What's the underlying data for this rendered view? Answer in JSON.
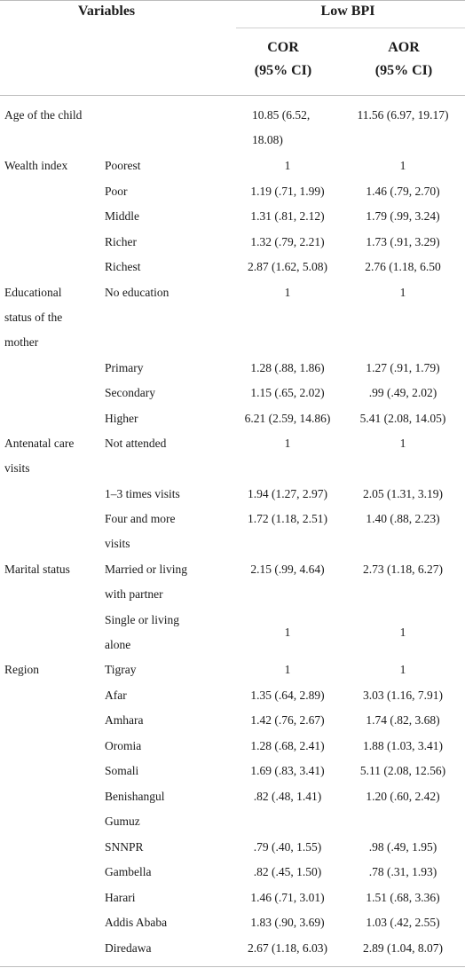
{
  "header": {
    "variables": "Variables",
    "group": "Low BPI",
    "cor_line1": "COR",
    "cor_line2": "(95% CI)",
    "aor_line1": "AOR",
    "aor_line2": "(95% CI)"
  },
  "rows": {
    "age": {
      "var": "Age of the child",
      "cor1": "10.85 (6.52,",
      "cor2": "18.08)",
      "aor": "11.56 (6.97, 19.17)"
    },
    "wealth": {
      "var": "Wealth index",
      "items": [
        {
          "cat": "Poorest",
          "cor": "1",
          "aor": "1"
        },
        {
          "cat": "Poor",
          "cor": "1.19 (.71, 1.99)",
          "aor": "1.46 (.79, 2.70)"
        },
        {
          "cat": "Middle",
          "cor": "1.31 (.81, 2.12)",
          "aor": "1.79 (.99, 3.24)"
        },
        {
          "cat": "Richer",
          "cor": "1.32 (.79, 2.21)",
          "aor": "1.73 (.91, 3.29)"
        },
        {
          "cat": "Richest",
          "cor": "2.87 (1.62, 5.08)",
          "aor": "2.76 (1.18, 6.50"
        }
      ]
    },
    "education": {
      "var1": "Educational",
      "var2": "status of the",
      "var3": "mother",
      "items": [
        {
          "cat": "No education",
          "cor": "1",
          "aor": "1"
        },
        {
          "cat": "Primary",
          "cor": "1.28 (.88, 1.86)",
          "aor": "1.27 (.91, 1.79)"
        },
        {
          "cat": "Secondary",
          "cor": "1.15 (.65, 2.02)",
          "aor": ".99 (.49, 2.02)"
        },
        {
          "cat": "Higher",
          "cor": "6.21 (2.59, 14.86)",
          "aor": "5.41 (2.08, 14.05)"
        }
      ]
    },
    "anc": {
      "var1": "Antenatal care",
      "var2": "visits",
      "items": [
        {
          "cat": "Not attended",
          "cor": "1",
          "aor": "1"
        },
        {
          "cat": "1–3 times visits",
          "cor": "1.94 (1.27, 2.97)",
          "aor": "2.05 (1.31, 3.19)"
        },
        {
          "cat1": "Four and more",
          "cat2": "visits",
          "cor": "1.72 (1.18, 2.51)",
          "aor": "1.40 (.88, 2.23)"
        }
      ]
    },
    "marital": {
      "var": "Marital status",
      "items": [
        {
          "cat1": "Married or living",
          "cat2": "with partner",
          "cor": "2.15 (.99, 4.64)",
          "aor": "2.73 (1.18, 6.27)"
        },
        {
          "cat1": "Single or living",
          "cat2": "alone",
          "cor": "1",
          "aor": "1"
        }
      ]
    },
    "region": {
      "var": "Region",
      "items": [
        {
          "cat": "Tigray",
          "cor": "1",
          "aor": "1"
        },
        {
          "cat": "Afar",
          "cor": "1.35 (.64, 2.89)",
          "aor": "3.03 (1.16, 7.91)"
        },
        {
          "cat": "Amhara",
          "cor": "1.42 (.76, 2.67)",
          "aor": "1.74 (.82, 3.68)"
        },
        {
          "cat": "Oromia",
          "cor": "1.28 (.68, 2.41)",
          "aor": "1.88 (1.03, 3.41)"
        },
        {
          "cat": "Somali",
          "cor": "1.69 (.83, 3.41)",
          "aor": "5.11 (2.08, 12.56)"
        },
        {
          "cat1": "Benishangul",
          "cat2": "Gumuz",
          "cor": ".82 (.48, 1.41)",
          "aor": "1.20 (.60, 2.42)"
        },
        {
          "cat": "SNNPR",
          "cor": ".79 (.40, 1.55)",
          "aor": ".98 (.49, 1.95)"
        },
        {
          "cat": "Gambella",
          "cor": ".82 (.45, 1.50)",
          "aor": ".78 (.31, 1.93)"
        },
        {
          "cat": "Harari",
          "cor": "1.46 (.71, 3.01)",
          "aor": "1.51 (.68, 3.36)"
        },
        {
          "cat": "Addis Ababa",
          "cor": "1.83 (.90, 3.69)",
          "aor": "1.03 (.42, 2.55)"
        },
        {
          "cat": "Diredawa",
          "cor": "2.67 (1.18, 6.03)",
          "aor": "2.89 (1.04, 8.07)"
        }
      ]
    }
  }
}
